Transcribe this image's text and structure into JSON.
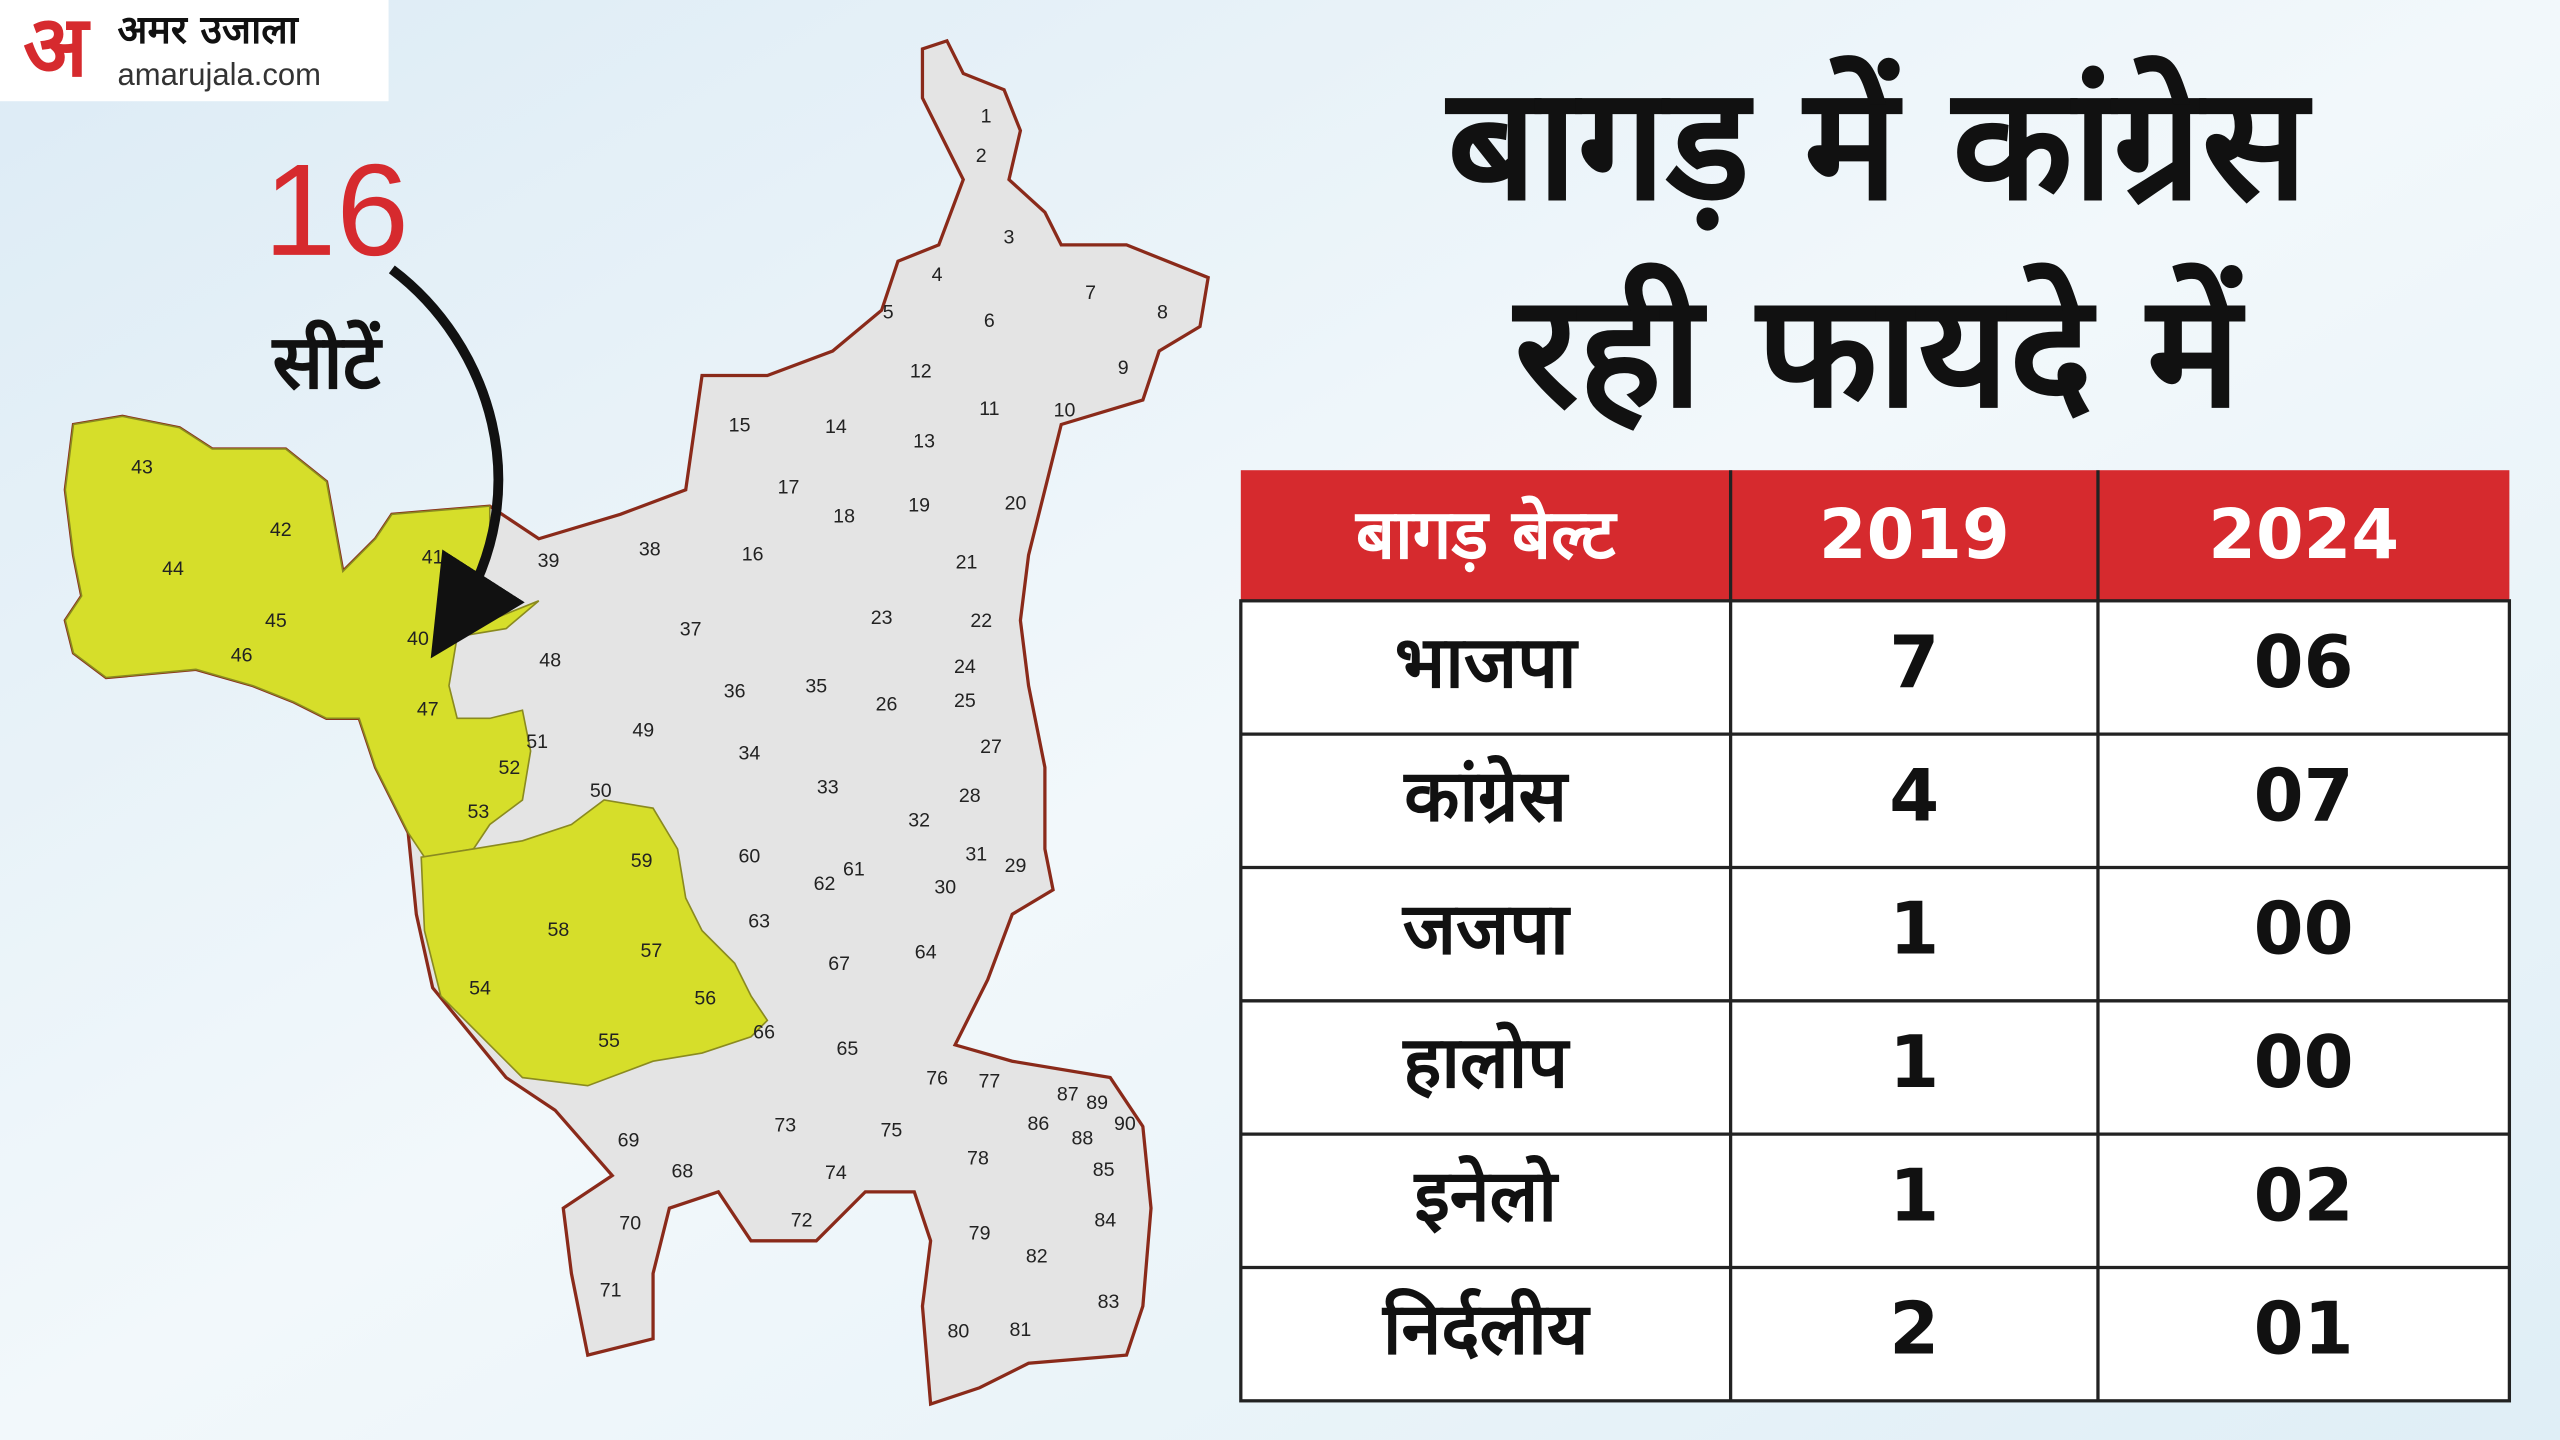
{
  "logo": {
    "mark": "अ",
    "name": "अमर उजाला",
    "site": "amarujala.com"
  },
  "callout": {
    "number": "16",
    "unit": "सीटें"
  },
  "title": {
    "line1": "बागड़ में कांग्रेस",
    "line2": "रही फायदे में"
  },
  "table": {
    "header": [
      "बागड़ बेल्ट",
      "2019",
      "2024"
    ],
    "rows": [
      [
        "भाजपा",
        "7",
        "06"
      ],
      [
        "कांग्रेस",
        "4",
        "07"
      ],
      [
        "जजपा",
        "1",
        "00"
      ],
      [
        "हालोप",
        "1",
        "00"
      ],
      [
        "इनेलो",
        "1",
        "02"
      ],
      [
        "निर्दलीय",
        "2",
        "01"
      ]
    ]
  },
  "map": {
    "labels": [
      "1",
      "2",
      "3",
      "4",
      "5",
      "6",
      "7",
      "8",
      "9",
      "10",
      "11",
      "12",
      "13",
      "14",
      "15",
      "16",
      "17",
      "18",
      "19",
      "20",
      "21",
      "22",
      "23",
      "24",
      "25",
      "26",
      "27",
      "28",
      "29",
      "30",
      "31",
      "32",
      "33",
      "34",
      "35",
      "36",
      "37",
      "38",
      "39",
      "40",
      "41",
      "42",
      "43",
      "44",
      "45",
      "46",
      "47",
      "48",
      "49",
      "50",
      "51",
      "52",
      "53",
      "54",
      "55",
      "56",
      "57",
      "58",
      "59",
      "60",
      "61",
      "62",
      "63",
      "64",
      "65",
      "66",
      "67",
      "68",
      "69",
      "70",
      "71",
      "72",
      "73",
      "74",
      "75",
      "76",
      "77",
      "78",
      "79",
      "80",
      "81",
      "82",
      "83",
      "84",
      "85",
      "86",
      "87",
      "88",
      "89",
      "90"
    ]
  }
}
